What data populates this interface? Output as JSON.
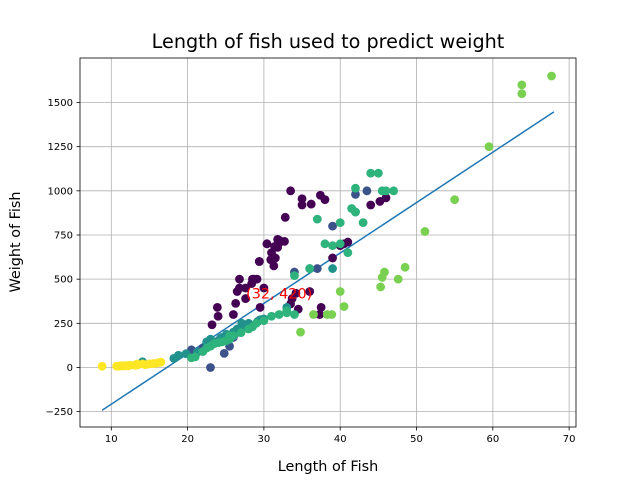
{
  "chart_data": {
    "type": "scatter",
    "title": "Length of fish used to predict weight",
    "xlabel": "Length of Fish",
    "ylabel": "Weight of Fish",
    "xlim": [
      5.9,
      70.9
    ],
    "ylim": [
      -337,
      1752
    ],
    "xticks": [
      10,
      20,
      30,
      40,
      50,
      60,
      70
    ],
    "yticks": [
      -250,
      0,
      250,
      500,
      750,
      1000,
      1250,
      1500
    ],
    "grid": true,
    "annotation": {
      "text": "(32, 420)",
      "x": 32,
      "y": 420,
      "color": "#ff0000"
    },
    "regression_line": {
      "x": [
        8.8,
        68.0
      ],
      "y": [
        -242,
        1447
      ],
      "color": "#1f77b4"
    },
    "series": [
      {
        "color": "#440154",
        "points": [
          [
            23.2,
            242
          ],
          [
            24,
            290
          ],
          [
            23.9,
            340
          ],
          [
            26.3,
            363
          ],
          [
            26.5,
            430
          ],
          [
            26.8,
            450
          ],
          [
            26.8,
            500
          ],
          [
            27.6,
            390
          ],
          [
            27.6,
            450
          ],
          [
            28.5,
            500
          ],
          [
            28.4,
            475
          ],
          [
            28.7,
            500
          ],
          [
            29.1,
            500
          ],
          [
            29.5,
            340
          ],
          [
            29.4,
            600
          ],
          [
            29.4,
            600
          ],
          [
            30.4,
            700
          ],
          [
            30.4,
            700
          ],
          [
            30.9,
            610
          ],
          [
            31,
            650
          ],
          [
            31.3,
            575
          ],
          [
            31.4,
            685
          ],
          [
            31.5,
            620
          ],
          [
            31.8,
            680
          ],
          [
            31.9,
            700
          ],
          [
            31.8,
            725
          ],
          [
            32,
            720
          ],
          [
            32.7,
            714
          ],
          [
            32.8,
            850
          ],
          [
            33.5,
            1000
          ],
          [
            35,
            920
          ],
          [
            35,
            955
          ],
          [
            36.2,
            925
          ],
          [
            37.4,
            975
          ],
          [
            38,
            950
          ],
          [
            22,
            100
          ],
          [
            26,
            300
          ],
          [
            30,
            450
          ],
          [
            34.5,
            330
          ],
          [
            33.5,
            360
          ],
          [
            33.7,
            390
          ],
          [
            34.2,
            420
          ],
          [
            36,
            430
          ],
          [
            37.3,
            300
          ],
          [
            37.5,
            340
          ],
          [
            39,
            620
          ],
          [
            40,
            690
          ],
          [
            40.5,
            700
          ],
          [
            41,
            710
          ],
          [
            44,
            920
          ],
          [
            45.2,
            940
          ],
          [
            46,
            960
          ],
          [
            29.2,
            260
          ]
        ]
      },
      {
        "color": "#3b528b",
        "points": [
          [
            23,
            0
          ],
          [
            24.8,
            80
          ],
          [
            25.5,
            120
          ],
          [
            20.5,
            100
          ],
          [
            22,
            110
          ],
          [
            22.5,
            120
          ],
          [
            23.5,
            140
          ],
          [
            24,
            150
          ],
          [
            26,
            170
          ],
          [
            34,
            540
          ],
          [
            37,
            560
          ],
          [
            39,
            800
          ],
          [
            42,
            980
          ],
          [
            43.5,
            1000
          ]
        ]
      },
      {
        "color": "#21918c",
        "points": [
          [
            14.1,
            32
          ],
          [
            18.2,
            51.5
          ],
          [
            18.8,
            69
          ],
          [
            19.8,
            78
          ],
          [
            21.3,
            87
          ],
          [
            22.5,
            145
          ],
          [
            23,
            160
          ],
          [
            23.5,
            145
          ],
          [
            24.3,
            165
          ],
          [
            24.5,
            170
          ],
          [
            25.1,
            188
          ],
          [
            26,
            200
          ],
          [
            26.4,
            196
          ],
          [
            26.5,
            218
          ],
          [
            27.1,
            250
          ],
          [
            27.3,
            230
          ],
          [
            28,
            250
          ],
          [
            29.2,
            260
          ],
          [
            29.5,
            270
          ],
          [
            30,
            275
          ],
          [
            33,
            340
          ],
          [
            36,
            560
          ],
          [
            39,
            560
          ],
          [
            42,
            880
          ]
        ]
      },
      {
        "color": "#2eb37c",
        "points": [
          [
            20.5,
            55
          ],
          [
            21,
            60
          ],
          [
            22,
            90
          ],
          [
            22.5,
            110
          ],
          [
            23,
            120
          ],
          [
            23.5,
            135
          ],
          [
            24,
            140
          ],
          [
            24.5,
            145
          ],
          [
            25,
            150
          ],
          [
            25.5,
            160
          ],
          [
            26,
            180
          ],
          [
            27,
            197
          ],
          [
            28,
            218
          ],
          [
            28.5,
            230
          ],
          [
            29,
            250
          ],
          [
            30,
            265
          ],
          [
            31,
            290
          ],
          [
            32,
            300
          ],
          [
            33,
            320
          ],
          [
            34,
            520
          ],
          [
            36,
            560
          ],
          [
            37,
            840
          ],
          [
            38,
            700
          ],
          [
            39,
            690
          ],
          [
            40,
            700
          ],
          [
            41,
            650
          ],
          [
            41.5,
            900
          ],
          [
            42,
            1015
          ],
          [
            42,
            880
          ],
          [
            43,
            820
          ],
          [
            44,
            1100
          ],
          [
            45,
            1100
          ],
          [
            46,
            1000
          ],
          [
            47,
            1000
          ],
          [
            45.5,
            1000
          ],
          [
            25.5,
            180
          ],
          [
            34,
            300
          ],
          [
            33,
            310
          ],
          [
            40,
            820
          ]
        ]
      },
      {
        "color": "#7ad151",
        "points": [
          [
            34.8,
            200
          ],
          [
            36.5,
            300
          ],
          [
            38.3,
            300
          ],
          [
            38.9,
            300
          ],
          [
            40,
            430
          ],
          [
            40.5,
            345
          ],
          [
            45.3,
            456
          ],
          [
            45.5,
            510
          ],
          [
            45.8,
            540
          ],
          [
            47.6,
            500
          ],
          [
            48.5,
            567
          ],
          [
            51.1,
            770
          ],
          [
            55,
            950
          ],
          [
            59.5,
            1250
          ],
          [
            63.8,
            1600
          ],
          [
            63.8,
            1550
          ],
          [
            67.7,
            1650
          ]
        ]
      },
      {
        "color": "#fde725",
        "points": [
          [
            8.8,
            6.7
          ],
          [
            10.7,
            7.5
          ],
          [
            11,
            7
          ],
          [
            11.2,
            9.7
          ],
          [
            11.3,
            9.8
          ],
          [
            11.6,
            8.7
          ],
          [
            11.9,
            10
          ],
          [
            12.2,
            9.9
          ],
          [
            12.2,
            9.8
          ],
          [
            12.4,
            12.2
          ],
          [
            13,
            13.4
          ],
          [
            13.2,
            12.2
          ],
          [
            13.4,
            19.7
          ],
          [
            14.1,
            19.9
          ],
          [
            14.5,
            16
          ],
          [
            15,
            20
          ],
          [
            15.5,
            22
          ],
          [
            16,
            25
          ],
          [
            16.5,
            30
          ],
          [
            13.5,
            15
          ]
        ]
      }
    ]
  }
}
